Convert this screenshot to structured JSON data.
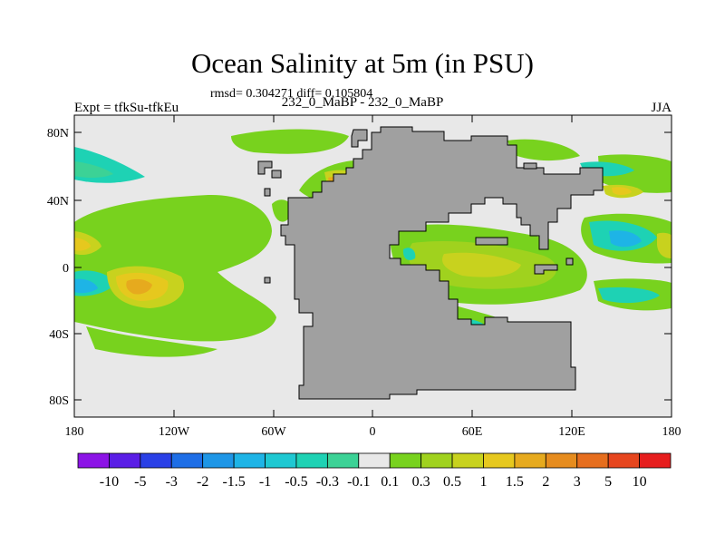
{
  "title": "Ocean Salinity at 5m (in PSU)",
  "stats": "rmsd= 0.304271 diff= 0.105804",
  "experiment": "Expt = tfkSu-tfkEu",
  "comparison": "232_0_MaBP - 232_0_MaBP",
  "season": "JJA",
  "map": {
    "lat_ticks": [
      "80N",
      "40N",
      "0",
      "40S",
      "80S"
    ],
    "lon_ticks": [
      "180",
      "120W",
      "60W",
      "0",
      "60E",
      "120E",
      "180"
    ],
    "land_color": "#a0a0a0",
    "ocean_neutral_color": "#e8e8e8"
  },
  "colorbar": {
    "labels": [
      "-10",
      "-5",
      "-3",
      "-2",
      "-1.5",
      "-1",
      "-0.5",
      "-0.3",
      "-0.1",
      "0.1",
      "0.3",
      "0.5",
      "1",
      "1.5",
      "2",
      "3",
      "5",
      "10"
    ],
    "colors": [
      "#8c14e6",
      "#5a1ee6",
      "#2a40e6",
      "#1e6ee6",
      "#1e96e6",
      "#1eb4e6",
      "#1ec8d2",
      "#1ed2b4",
      "#3cd296",
      "#e8e8e8",
      "#78d21e",
      "#a0d21e",
      "#c8d21e",
      "#e6c81e",
      "#e6aa1e",
      "#e68c1e",
      "#e66e1e",
      "#e6461e",
      "#e61e1e"
    ]
  }
}
